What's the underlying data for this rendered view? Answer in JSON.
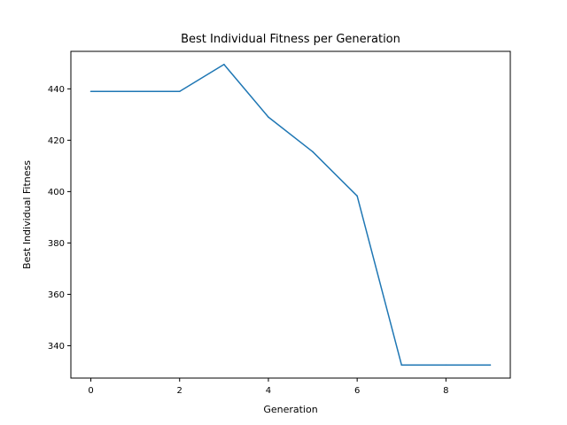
{
  "chart_data": {
    "type": "line",
    "title": "Best Individual Fitness per Generation",
    "xlabel": "Generation",
    "ylabel": "Best Individual Fitness",
    "x": [
      0,
      1,
      2,
      3,
      4,
      5,
      6,
      7,
      8,
      9
    ],
    "series": [
      {
        "values": [
          439,
          439,
          439,
          449.5,
          429,
          415.5,
          398.3,
          332.5,
          332.5,
          332.5
        ]
      }
    ],
    "xlim": [
      -0.45,
      9.45
    ],
    "ylim": [
      327.4,
      454.6
    ],
    "xticks": [
      0,
      2,
      4,
      6,
      8
    ],
    "yticks": [
      340,
      360,
      380,
      400,
      420,
      440
    ],
    "grid": false,
    "line_color": "#1f77b4"
  }
}
